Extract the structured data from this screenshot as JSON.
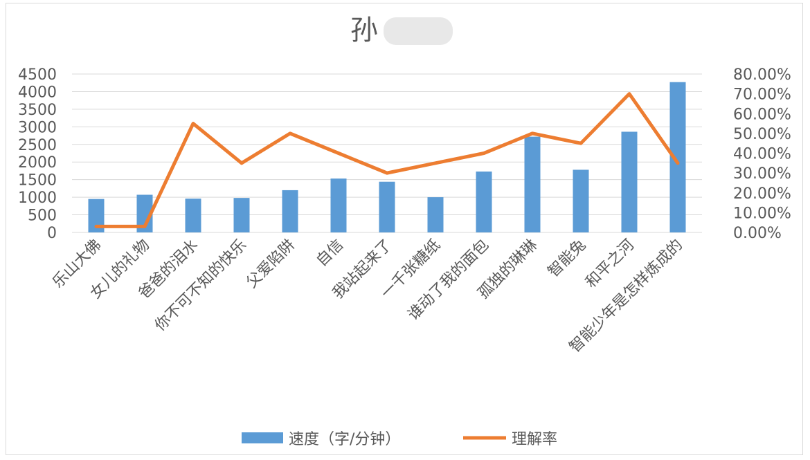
{
  "chart_data": {
    "type": "bar+line",
    "title": "孙",
    "categories": [
      "乐山大佛",
      "女儿的礼物",
      "爸爸的泪水",
      "你不可不知的快乐",
      "父爱陷阱",
      "自信",
      "我站起来了",
      "一千张糖纸",
      "谁动了我的面包",
      "孤独的琳琳",
      "智能兔",
      "和平之河",
      "智能少年是怎样炼成的"
    ],
    "series": [
      {
        "name": "速度（字/分钟）",
        "type": "bar",
        "axis": "left",
        "color": "#5b9bd5",
        "values": [
          950,
          1070,
          960,
          980,
          1200,
          1530,
          1440,
          1000,
          1730,
          2720,
          1780,
          2860,
          4270
        ]
      },
      {
        "name": "理解率",
        "type": "line",
        "axis": "right",
        "color": "#ed7d31",
        "values": [
          0.03,
          0.03,
          0.55,
          0.35,
          0.5,
          0.4,
          0.3,
          0.35,
          0.4,
          0.5,
          0.45,
          0.7,
          0.35
        ]
      }
    ],
    "y_left": {
      "min": 0,
      "max": 4500,
      "ticks": [
        "0",
        "500",
        "1000",
        "1500",
        "2000",
        "2500",
        "3000",
        "3500",
        "4000",
        "4500"
      ]
    },
    "y_right": {
      "min": 0,
      "max": 0.8,
      "ticks": [
        "0.00%",
        "10.00%",
        "20.00%",
        "30.00%",
        "40.00%",
        "50.00%",
        "60.00%",
        "70.00%",
        "80.00%"
      ]
    },
    "grid": true,
    "legend": "bottom"
  }
}
